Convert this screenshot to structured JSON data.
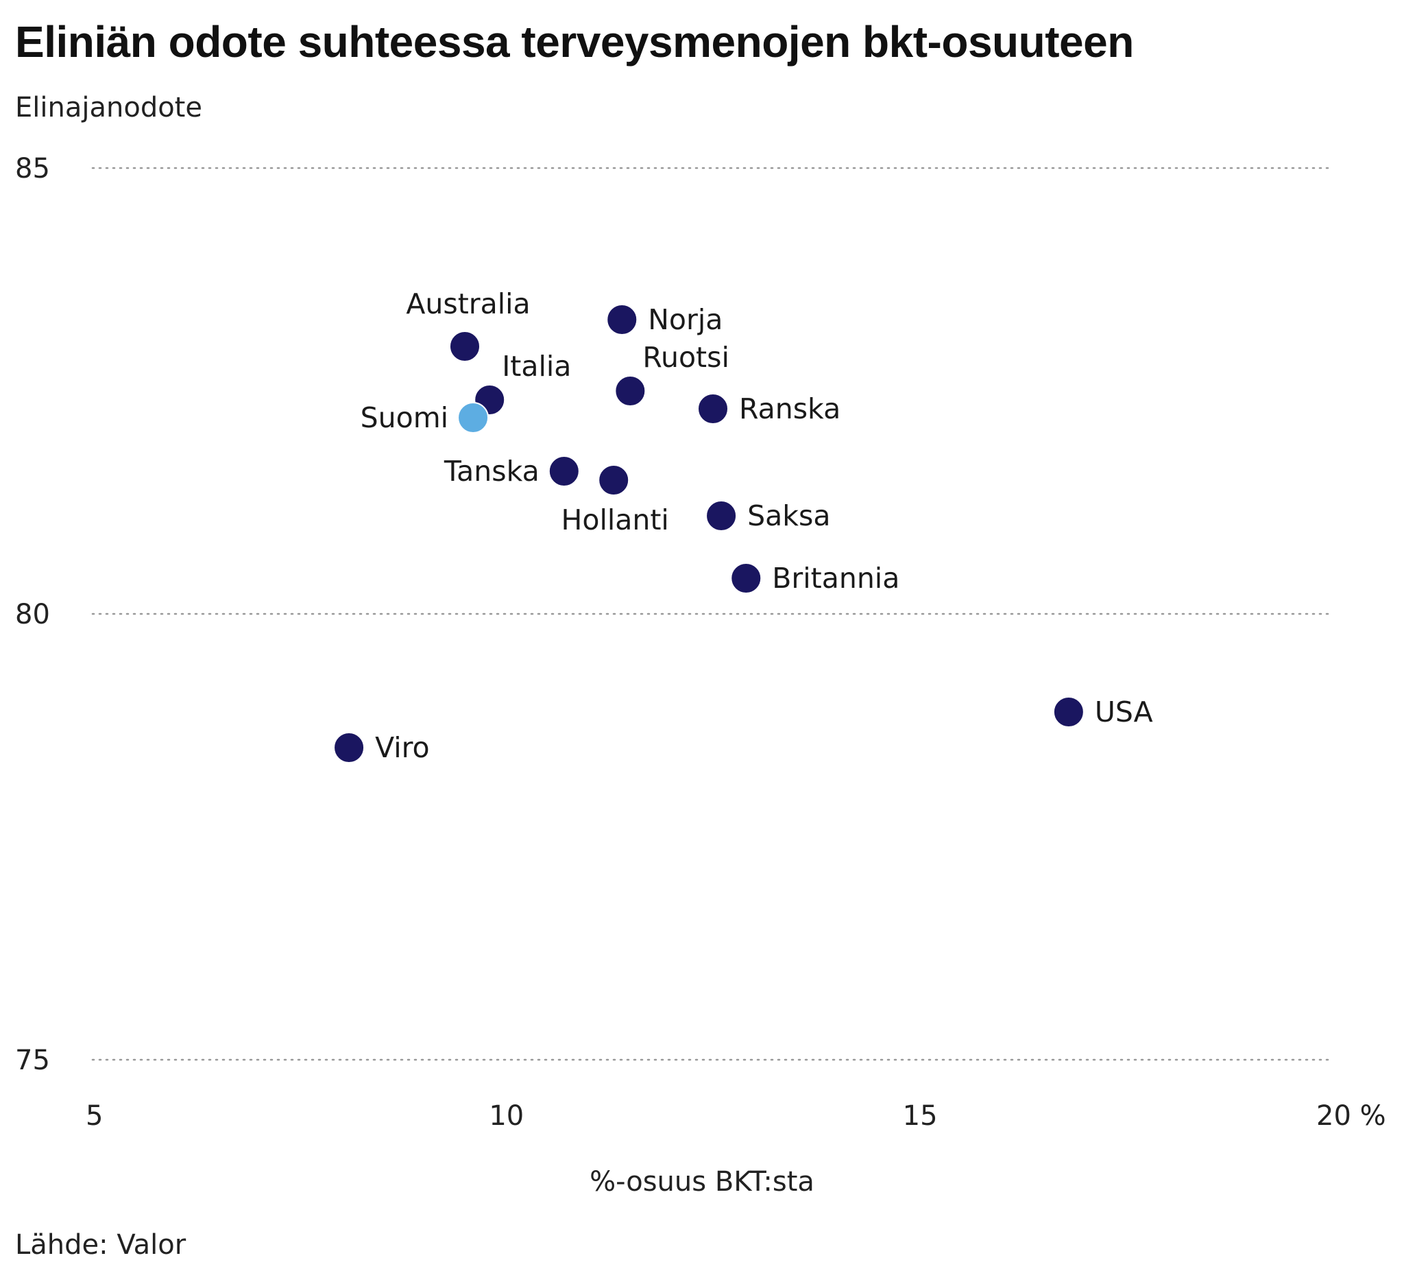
{
  "chart_data": {
    "type": "scatter",
    "title": "Eliniän odote suhteessa terveysmenojen bkt-osuuteen",
    "ylabel": "Elinajanodote",
    "xlabel": "%-osuus BKT:sta",
    "source": "Lähde: Valor",
    "xlim": [
      5,
      20
    ],
    "ylim": [
      75,
      85
    ],
    "x_ticks": [
      {
        "value": 5,
        "label": "5"
      },
      {
        "value": 10,
        "label": "10"
      },
      {
        "value": 15,
        "label": "15"
      },
      {
        "value": 20,
        "label": "20 %"
      }
    ],
    "y_ticks": [
      {
        "value": 75,
        "label": "75"
      },
      {
        "value": 80,
        "label": "80"
      },
      {
        "value": 85,
        "label": "85"
      }
    ],
    "grid": "horizontal dotted",
    "colors": {
      "default": "#1a1660",
      "highlight": "#5dade2",
      "grid": "#999999"
    },
    "points": [
      {
        "label": "Australia",
        "x": 9.5,
        "y": 83.0,
        "label_pos": "above"
      },
      {
        "label": "Norja",
        "x": 11.4,
        "y": 83.3,
        "label_pos": "right"
      },
      {
        "label": "Italia",
        "x": 9.8,
        "y": 82.4,
        "label_pos": "above-right"
      },
      {
        "label": "Ruotsi",
        "x": 11.5,
        "y": 82.5,
        "label_pos": "above-right"
      },
      {
        "label": "Suomi",
        "x": 9.6,
        "y": 82.2,
        "label_pos": "left",
        "highlight": true
      },
      {
        "label": "Ranska",
        "x": 12.5,
        "y": 82.3,
        "label_pos": "right"
      },
      {
        "label": "Tanska",
        "x": 10.7,
        "y": 81.6,
        "label_pos": "left"
      },
      {
        "label": "Hollanti",
        "x": 11.3,
        "y": 81.5,
        "label_pos": "below"
      },
      {
        "label": "Saksa",
        "x": 12.6,
        "y": 81.1,
        "label_pos": "right"
      },
      {
        "label": "Britannia",
        "x": 12.9,
        "y": 80.4,
        "label_pos": "right"
      },
      {
        "label": "USA",
        "x": 16.8,
        "y": 78.9,
        "label_pos": "right"
      },
      {
        "label": "Viro",
        "x": 8.1,
        "y": 78.5,
        "label_pos": "right"
      }
    ]
  }
}
